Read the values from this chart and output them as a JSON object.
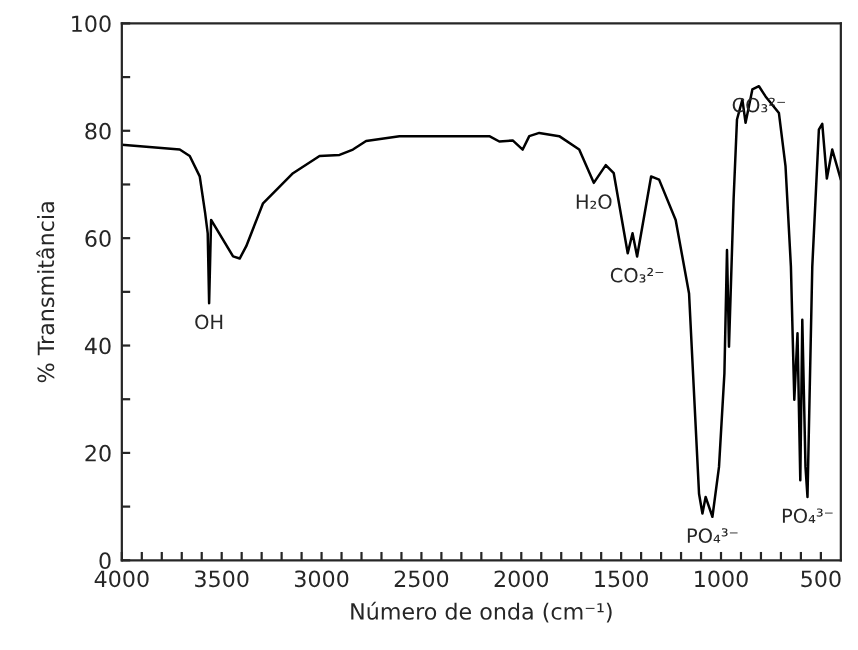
{
  "chart_data": {
    "type": "line",
    "xlabel": "Número de onda (cm⁻¹)",
    "ylabel": "% Transmitância",
    "x": [
      4000,
      3710,
      3660,
      3610,
      3583,
      3570,
      3563,
      3553,
      3443,
      3410,
      3377,
      3293,
      3143,
      3010,
      2910,
      2843,
      2777,
      2610,
      2410,
      2210,
      2160,
      2110,
      2043,
      1993,
      1960,
      1910,
      1810,
      1710,
      1637,
      1577,
      1537,
      1467,
      1443,
      1420,
      1350,
      1310,
      1227,
      1160,
      1110,
      1093,
      1077,
      1043,
      1010,
      983,
      970,
      960,
      937,
      920,
      893,
      877,
      843,
      810,
      777,
      710,
      677,
      650,
      633,
      617,
      603,
      593,
      577,
      567,
      543,
      510,
      493,
      470,
      443,
      400
    ],
    "series": [
      {
        "color": "#000000",
        "values": [
          77.4,
          76.5,
          75.3,
          71.5,
          64.7,
          60.9,
          47.9,
          63.4,
          56.6,
          56.2,
          58.5,
          66.5,
          72.1,
          75.3,
          75.5,
          76.5,
          78.1,
          79.0,
          79.0,
          79.0,
          79.0,
          78.0,
          78.2,
          76.5,
          79.0,
          79.6,
          79.0,
          76.5,
          70.3,
          73.6,
          72.1,
          57.2,
          60.9,
          56.6,
          71.5,
          70.9,
          63.4,
          49.7,
          12.4,
          8.7,
          11.8,
          8.1,
          17.4,
          34.8,
          57.8,
          39.8,
          67.2,
          82.1,
          85.8,
          81.5,
          87.7,
          88.3,
          86.4,
          83.3,
          73.4,
          54.7,
          29.9,
          42.3,
          14.9,
          44.8,
          17.4,
          11.8,
          54.7,
          80.2,
          81.3,
          71.1,
          76.5,
          70.9
        ]
      }
    ],
    "annotations": [
      {
        "text": "OH",
        "x": 3563,
        "y": 47.9
      },
      {
        "text": "H₂O",
        "x": 1637,
        "y": 70.3
      },
      {
        "text": "CO₃²⁻",
        "x": 1420,
        "y": 56.6
      },
      {
        "text": "CO₃²⁻",
        "x": 810,
        "y": 88.3
      },
      {
        "text": "PO₄³⁻",
        "x": 1043,
        "y": 8.1
      },
      {
        "text": "PO₄³⁻",
        "x": 567,
        "y": 11.8
      }
    ],
    "xlim": [
      4000,
      400
    ],
    "xticks": [
      4000,
      {
        "value": 3900,
        "label": null
      },
      {
        "value": 3800,
        "label": null
      },
      {
        "value": 3700,
        "label": null
      },
      {
        "value": 3600,
        "label": null
      },
      3500,
      {
        "value": 3400,
        "label": null
      },
      {
        "value": 3300,
        "label": null
      },
      {
        "value": 3200,
        "label": null
      },
      {
        "value": 3100,
        "label": null
      },
      3000,
      {
        "value": 2900,
        "label": null
      },
      {
        "value": 2800,
        "label": null
      },
      {
        "value": 2700,
        "label": null
      },
      {
        "value": 2600,
        "label": null
      },
      2500,
      {
        "value": 2400,
        "label": null
      },
      {
        "value": 2300,
        "label": null
      },
      {
        "value": 2200,
        "label": null
      },
      {
        "value": 2100,
        "label": null
      },
      2000,
      {
        "value": 1900,
        "label": null
      },
      {
        "value": 1800,
        "label": null
      },
      {
        "value": 1700,
        "label": null
      },
      {
        "value": 1600,
        "label": null
      },
      1500,
      {
        "value": 1400,
        "label": null
      },
      {
        "value": 1300,
        "label": null
      },
      {
        "value": 1200,
        "label": null
      },
      {
        "value": 1100,
        "label": null
      },
      1000,
      {
        "value": 900,
        "label": null
      },
      {
        "value": 800,
        "label": null
      },
      {
        "value": 700,
        "label": null
      },
      {
        "value": 600,
        "label": null
      },
      500
    ],
    "ylim": [
      0,
      100
    ],
    "yticks": [
      0,
      {
        "value": 10,
        "label": null
      },
      20,
      {
        "value": 30,
        "label": null
      },
      40,
      {
        "value": 50,
        "label": null
      },
      60,
      {
        "value": 70,
        "label": null
      },
      80,
      {
        "value": 90,
        "label": null
      },
      100
    ],
    "grid": false,
    "legend": false,
    "marker": "none",
    "line_style": "solid"
  }
}
